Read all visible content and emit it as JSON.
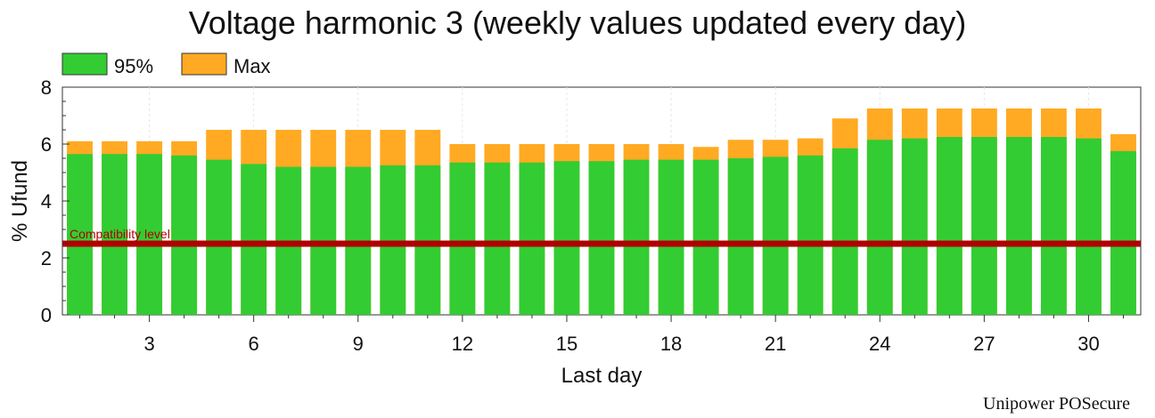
{
  "chart_data": {
    "type": "bar",
    "title": "Voltage harmonic 3 (weekly values updated every day)",
    "xlabel": "Last day",
    "ylabel": "% Ufund",
    "ylim": [
      0,
      8
    ],
    "yticks": [
      0,
      2,
      4,
      6,
      8
    ],
    "xticks": [
      3,
      6,
      9,
      12,
      15,
      18,
      21,
      24,
      27,
      30
    ],
    "x": [
      1,
      2,
      3,
      4,
      5,
      6,
      7,
      8,
      9,
      10,
      11,
      12,
      13,
      14,
      15,
      16,
      17,
      18,
      19,
      20,
      21,
      22,
      23,
      24,
      25,
      26,
      27,
      28,
      29,
      30,
      31
    ],
    "stacking": "overlay",
    "series": [
      {
        "name": "95%",
        "color": "#33cc33",
        "values": [
          5.65,
          5.65,
          5.65,
          5.6,
          5.45,
          5.3,
          5.2,
          5.2,
          5.2,
          5.25,
          5.25,
          5.35,
          5.35,
          5.35,
          5.4,
          5.4,
          5.45,
          5.45,
          5.45,
          5.5,
          5.55,
          5.6,
          5.85,
          6.15,
          6.2,
          6.25,
          6.25,
          6.25,
          6.25,
          6.2,
          5.75
        ]
      },
      {
        "name": "Max",
        "color": "#ffaa22",
        "values": [
          6.1,
          6.1,
          6.1,
          6.1,
          6.5,
          6.5,
          6.5,
          6.5,
          6.5,
          6.5,
          6.5,
          6.0,
          6.0,
          6.0,
          6.0,
          6.0,
          6.0,
          6.0,
          5.9,
          6.15,
          6.15,
          6.2,
          6.9,
          7.25,
          7.25,
          7.25,
          7.25,
          7.25,
          7.25,
          7.25,
          6.35
        ]
      }
    ],
    "reference_lines": [
      {
        "label": "Compatibility level",
        "value": 2.5,
        "color": "#cc0000"
      }
    ],
    "legend_position": "top-left",
    "grid": true
  },
  "branding": "Unipower POSecure"
}
